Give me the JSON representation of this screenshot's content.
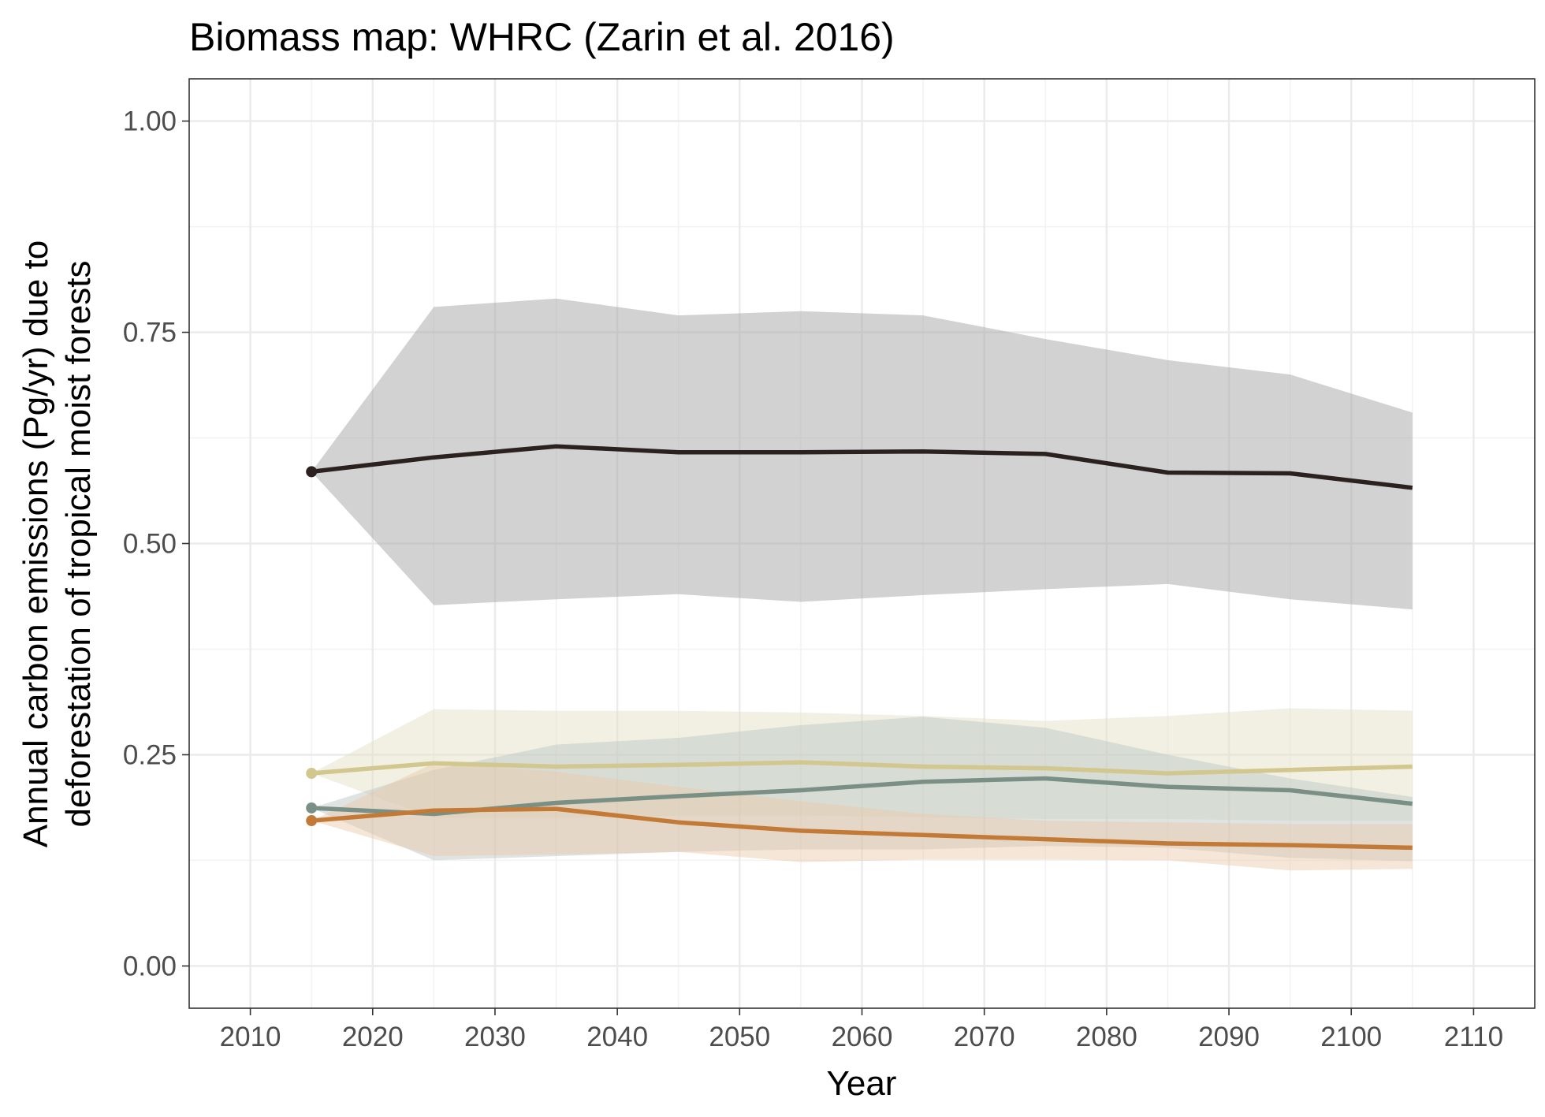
{
  "chart_data": {
    "type": "line",
    "title": "Biomass map: WHRC (Zarin et al. 2016)",
    "xlabel": "Year",
    "ylabel_lines": [
      "Annual carbon emissions (Pg/yr) due to",
      "deforestation of tropical moist forests"
    ],
    "xlim": [
      2005,
      2115
    ],
    "ylim": [
      -0.05,
      1.05
    ],
    "xticks": [
      2010,
      2020,
      2030,
      2040,
      2050,
      2060,
      2070,
      2080,
      2090,
      2100,
      2110
    ],
    "xtick_labels": [
      "2010",
      "2020",
      "2030",
      "2040",
      "2050",
      "2060",
      "2070",
      "2080",
      "2090",
      "2100",
      "2110"
    ],
    "yticks": [
      0,
      0.25,
      0.5,
      0.75,
      1.0
    ],
    "ytick_labels": [
      "0.00",
      "0.25",
      "0.50",
      "0.75",
      "1.00"
    ],
    "grid": true,
    "legend": "none",
    "x": [
      2015,
      2025,
      2035,
      2045,
      2055,
      2065,
      2075,
      2085,
      2095,
      2105
    ],
    "series": [
      {
        "color": "#2b211f",
        "band_color": "#a8a5a8",
        "band_opacity": 0.5,
        "values": [
          0.585,
          0.602,
          0.615,
          0.608,
          0.608,
          0.609,
          0.606,
          0.584,
          0.583,
          0.566
        ],
        "lower": [
          0.585,
          0.427,
          0.434,
          0.44,
          0.431,
          0.439,
          0.446,
          0.452,
          0.434,
          0.422
        ],
        "upper": [
          0.585,
          0.78,
          0.79,
          0.77,
          0.775,
          0.77,
          0.742,
          0.717,
          0.7,
          0.655
        ]
      },
      {
        "color": "#d1c78f",
        "band_color": "#e4e2c7",
        "band_opacity": 0.5,
        "values": [
          0.228,
          0.24,
          0.236,
          0.238,
          0.241,
          0.236,
          0.234,
          0.228,
          0.232,
          0.236
        ],
        "lower": [
          0.228,
          0.175,
          0.175,
          0.178,
          0.178,
          0.176,
          0.174,
          0.174,
          0.172,
          0.172
        ],
        "upper": [
          0.228,
          0.304,
          0.302,
          0.302,
          0.3,
          0.296,
          0.29,
          0.296,
          0.305,
          0.302
        ]
      },
      {
        "color": "#7a9086",
        "band_color": "#b7c3c1",
        "band_opacity": 0.45,
        "values": [
          0.187,
          0.18,
          0.193,
          0.201,
          0.208,
          0.218,
          0.222,
          0.212,
          0.208,
          0.192
        ],
        "lower": [
          0.187,
          0.125,
          0.13,
          0.135,
          0.138,
          0.138,
          0.142,
          0.14,
          0.128,
          0.124
        ],
        "upper": [
          0.187,
          0.232,
          0.262,
          0.27,
          0.285,
          0.295,
          0.282,
          0.25,
          0.222,
          0.2
        ]
      },
      {
        "color": "#c37a37",
        "band_color": "#ebc7a6",
        "band_opacity": 0.45,
        "values": [
          0.172,
          0.184,
          0.186,
          0.17,
          0.16,
          0.155,
          0.15,
          0.145,
          0.143,
          0.14
        ],
        "lower": [
          0.172,
          0.13,
          0.132,
          0.135,
          0.123,
          0.126,
          0.126,
          0.125,
          0.113,
          0.115
        ],
        "upper": [
          0.172,
          0.24,
          0.23,
          0.212,
          0.195,
          0.18,
          0.172,
          0.17,
          0.168,
          0.168
        ]
      }
    ]
  }
}
